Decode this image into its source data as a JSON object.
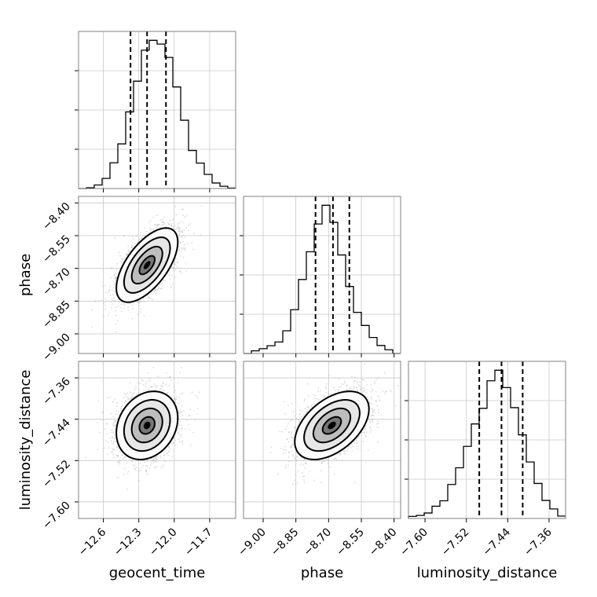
{
  "chart_data": {
    "type": "corner",
    "grid": true,
    "parameters": [
      "geocent_time",
      "phase",
      "luminosity_distance"
    ],
    "axis_labels": {
      "geocent_time": "geocent_time",
      "phase": "phase",
      "luminosity_distance": "luminosity_distance"
    },
    "ranges": {
      "geocent_time": [
        -12.81,
        -11.48
      ],
      "phase": [
        -9.09,
        -8.37
      ],
      "luminosity_distance": [
        -7.632,
        -7.328
      ]
    },
    "ticks": {
      "geocent_time": [
        {
          "value": -12.6,
          "label": "−12.6"
        },
        {
          "value": -12.3,
          "label": "−12.3"
        },
        {
          "value": -12.0,
          "label": "−12.0"
        },
        {
          "value": -11.7,
          "label": "−11.7"
        }
      ],
      "phase": [
        {
          "value": -9.0,
          "label": "−9.00"
        },
        {
          "value": -8.85,
          "label": "−8.85"
        },
        {
          "value": -8.7,
          "label": "−8.70"
        },
        {
          "value": -8.55,
          "label": "−8.55"
        },
        {
          "value": -8.4,
          "label": "−8.40"
        }
      ],
      "luminosity_distance": [
        {
          "value": -7.6,
          "label": "−7.60"
        },
        {
          "value": -7.52,
          "label": "−7.52"
        },
        {
          "value": -7.44,
          "label": "−7.44"
        },
        {
          "value": -7.36,
          "label": "−7.36"
        }
      ]
    },
    "quantiles": {
      "geocent_time": [
        -12.37,
        -12.23,
        -12.07
      ],
      "phase": [
        -8.76,
        -8.68,
        -8.605
      ],
      "luminosity_distance": [
        -7.495,
        -7.452,
        -7.411
      ]
    },
    "histograms": {
      "geocent_time": {
        "edges_range": [
          -12.81,
          -11.48
        ],
        "counts": [
          0,
          0.3,
          1.4,
          4.0,
          10.2,
          17.7,
          30.4,
          42.6,
          54.9,
          58.8,
          57.3,
          52.0,
          40.3,
          27.1,
          15.1,
          10.1,
          5.6,
          2.2,
          0.9,
          0.2
        ]
      },
      "phase": {
        "edges_range": [
          -9.09,
          -8.37
        ],
        "counts": [
          0,
          1.0,
          1.8,
          2.9,
          4.3,
          8.5,
          16.4,
          27.7,
          38.1,
          48.5,
          55.5,
          49.1,
          36.9,
          25.1,
          15.4,
          10.5,
          6.0,
          3.0,
          1.4,
          0
        ]
      },
      "luminosity_distance": {
        "edges_range": [
          -7.632,
          -7.328
        ],
        "counts": [
          0.6,
          0.9,
          1.6,
          3.6,
          5.2,
          10.0,
          14.9,
          21.2,
          27.8,
          32.4,
          40.5,
          43.6,
          38.5,
          32.6,
          24.6,
          16.6,
          10.3,
          5.3,
          2.8,
          0.7
        ]
      }
    },
    "pairs": [
      {
        "x": "geocent_time",
        "y": "phase",
        "mean": [
          -12.23,
          -8.685
        ],
        "sd": [
          0.13,
          0.085
        ],
        "correlation": 0.62
      },
      {
        "x": "geocent_time",
        "y": "luminosity_distance",
        "mean": [
          -12.23,
          -7.452
        ],
        "sd": [
          0.13,
          0.033
        ],
        "correlation": 0.22
      },
      {
        "x": "phase",
        "y": "luminosity_distance",
        "mean": [
          -8.685,
          -7.452
        ],
        "sd": [
          0.085,
          0.033
        ],
        "correlation": 0.48
      }
    ],
    "contour_levels_sigma": [
      0.5,
      1.0,
      1.5,
      2.0
    ]
  }
}
